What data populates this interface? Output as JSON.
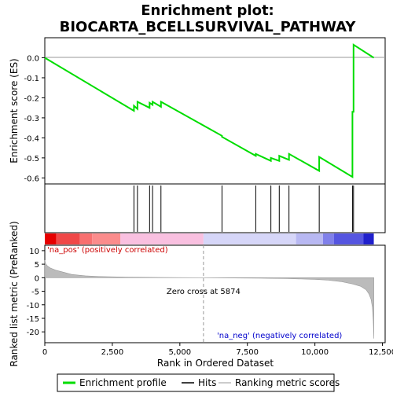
{
  "chart_data": {
    "type": "line",
    "title": "Enrichment plot:",
    "subtitle": "BIOCARTA_BCELLSURVIVAL_PATHWAY",
    "top_panel": {
      "ylabel": "Enrichment score (ES)",
      "ylim": [
        -0.63,
        0.1
      ],
      "yticks": [
        0.0,
        -0.1,
        -0.2,
        -0.3,
        -0.4,
        -0.5,
        -0.6
      ],
      "ytick_labels": [
        "0.0",
        "-0.1",
        "-0.2",
        "-0.3",
        "-0.4",
        "-0.5",
        "-0.6"
      ],
      "series": [
        {
          "name": "Enrichment profile",
          "color": "#00dd00",
          "x": [
            0,
            3300,
            3300,
            3430,
            3430,
            3880,
            3880,
            3990,
            3990,
            4300,
            4300,
            6560,
            6560,
            7810,
            7810,
            8370,
            8370,
            8680,
            8680,
            9040,
            9040,
            10160,
            10160,
            11390,
            11390,
            11430,
            11430,
            12180
          ],
          "y": [
            0.0,
            -0.265,
            -0.24,
            -0.255,
            -0.22,
            -0.25,
            -0.225,
            -0.235,
            -0.22,
            -0.245,
            -0.22,
            -0.39,
            -0.395,
            -0.49,
            -0.48,
            -0.515,
            -0.5,
            -0.515,
            -0.49,
            -0.51,
            -0.48,
            -0.565,
            -0.495,
            -0.595,
            -0.27,
            -0.27,
            0.065,
            0.0
          ]
        }
      ]
    },
    "hits": [
      3300,
      3430,
      3880,
      3990,
      4300,
      6560,
      7810,
      8370,
      8680,
      9040,
      10160,
      11390,
      11430
    ],
    "colorbar": {
      "segments": [
        {
          "x0": 0,
          "x1": 420,
          "color": "#e60000"
        },
        {
          "x0": 420,
          "x1": 1300,
          "color": "#f04848"
        },
        {
          "x0": 1300,
          "x1": 1750,
          "color": "#f87070"
        },
        {
          "x0": 1750,
          "x1": 2800,
          "color": "#fb8c8c"
        },
        {
          "x0": 2800,
          "x1": 5874,
          "color": "#f9c0e0"
        },
        {
          "x0": 5874,
          "x1": 9300,
          "color": "#d6d6f8"
        },
        {
          "x0": 9300,
          "x1": 10300,
          "color": "#b8b8f2"
        },
        {
          "x0": 10300,
          "x1": 10700,
          "color": "#8080ea"
        },
        {
          "x0": 10700,
          "x1": 11800,
          "color": "#5555e0"
        },
        {
          "x0": 11800,
          "x1": 12180,
          "color": "#2020cc"
        }
      ]
    },
    "bottom_panel": {
      "ylabel": "Ranked list metric (PreRanked)",
      "xlabel": "Rank in Ordered Dataset",
      "xlim": [
        0,
        12600
      ],
      "ylim": [
        -24,
        12
      ],
      "xticks": [
        0,
        2500,
        5000,
        7500,
        10000,
        12500
      ],
      "xtick_labels": [
        "0",
        "2,500",
        "5,000",
        "7,500",
        "10,000",
        "12,500"
      ],
      "yticks": [
        10,
        5,
        0,
        -5,
        -10,
        -15,
        -20
      ],
      "ytick_labels": [
        "10",
        "5",
        "0",
        "-5",
        "-10",
        "-15",
        "-20"
      ],
      "metric": {
        "x": [
          0,
          30,
          100,
          200,
          400,
          700,
          1000,
          1500,
          2000,
          3000,
          4000,
          5000,
          5874,
          7000,
          8000,
          9000,
          10000,
          10500,
          11000,
          11400,
          11700,
          11900,
          12000,
          12080,
          12130,
          12160,
          12180
        ],
        "y": [
          6.5,
          5.2,
          4.3,
          3.6,
          2.8,
          2.0,
          1.2,
          0.7,
          0.45,
          0.25,
          0.12,
          0.05,
          0.0,
          -0.1,
          -0.2,
          -0.35,
          -0.6,
          -0.9,
          -1.5,
          -2.3,
          -3.2,
          -4.5,
          -6.0,
          -8.0,
          -11.0,
          -16.0,
          -22.5
        ]
      },
      "zero_cross_label": "Zero cross at 5874",
      "zero_cross_x": 5874,
      "pos_label": "'na_pos' (positively correlated)",
      "neg_label": "'na_neg' (negatively correlated)"
    },
    "legend": [
      {
        "label": "Enrichment profile",
        "color": "#00dd00"
      },
      {
        "label": "Hits",
        "color": "#000000"
      },
      {
        "label": "Ranking metric scores",
        "color": "#bbbbbb"
      }
    ]
  }
}
